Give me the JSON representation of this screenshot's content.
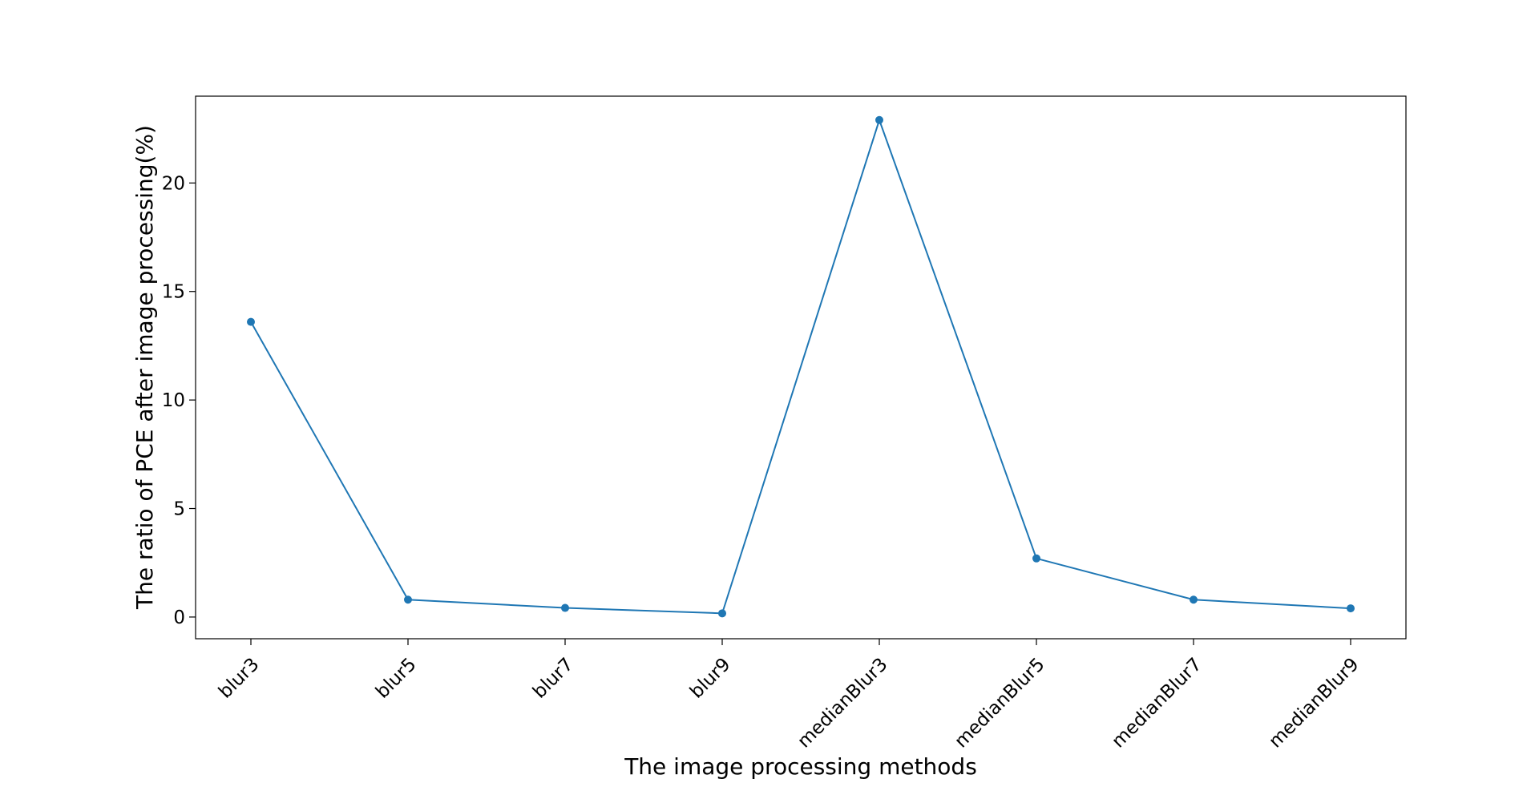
{
  "chart_data": {
    "type": "line",
    "title": "",
    "xlabel": "The image processing methods",
    "ylabel": "The ratio of PCE after image processing(%)",
    "categories": [
      "blur3",
      "blur5",
      "blur7",
      "blur9",
      "medianBlur3",
      "medianBlur5",
      "medianBlur7",
      "medianBlur9"
    ],
    "series": [
      {
        "values": [
          13.6,
          0.8,
          0.42,
          0.17,
          22.9,
          2.7,
          0.8,
          0.4
        ]
      }
    ],
    "ylim": [
      -1,
      24
    ],
    "yticks": [
      0,
      5,
      10,
      15,
      20
    ],
    "ytick_labels": [
      "0",
      "5",
      "10",
      "15",
      "20"
    ],
    "grid": false,
    "legend": "none",
    "colors": {
      "line": "#1f77b4",
      "axes": "#000000"
    }
  }
}
